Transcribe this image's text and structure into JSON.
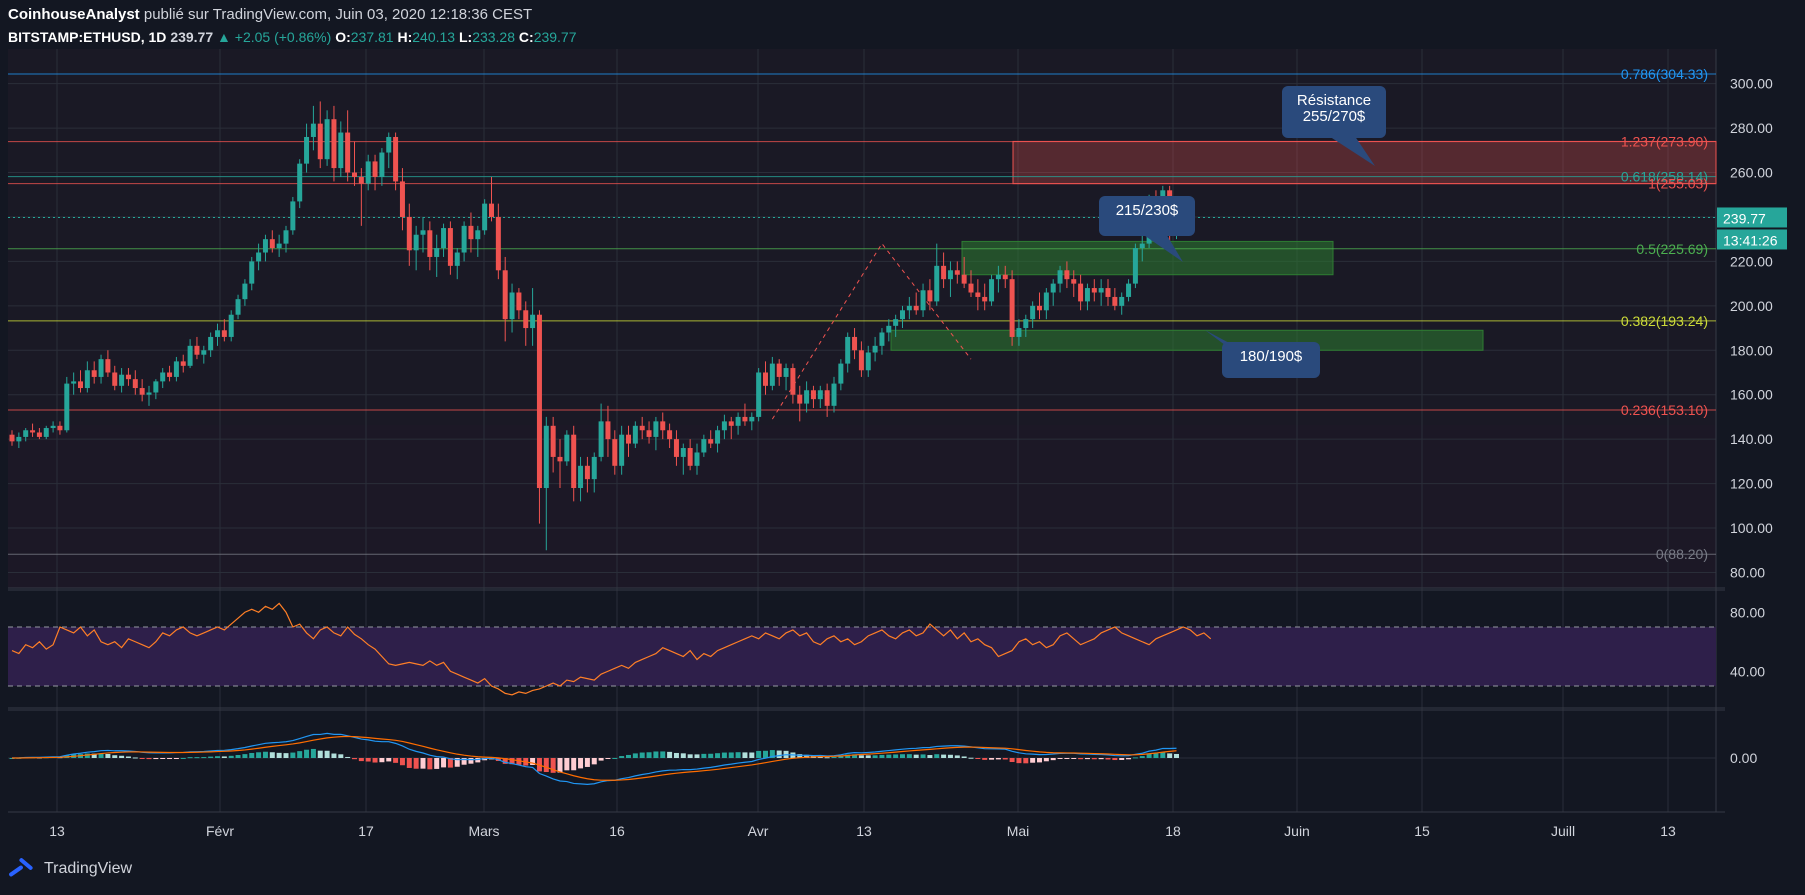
{
  "header": {
    "author": "CoinhouseAnalyst",
    "published": " publié sur TradingView.com, Juin 03, 2020 12:18:36 CEST",
    "symbol": "BITSTAMP:ETHUSD, 1D",
    "last": "239.77",
    "change": "▲ +2.05 (+0.86%)",
    "o_label": "O:",
    "o": "237.81",
    "h_label": "H:",
    "h": "240.13",
    "l_label": "L:",
    "l": "233.28",
    "c_label": "C:",
    "c": "239.77"
  },
  "footer": {
    "brand": "TradingView"
  },
  "colors": {
    "background": "#131722",
    "up": "#26a69a",
    "down": "#ef5350",
    "grid": "#2a2e39",
    "rsi": "#ff7f27",
    "rsi_band": "#2e1f4a",
    "macd": "#2196f3",
    "signal": "#ff6d00"
  },
  "chart_data": [
    {
      "type": "candlestick",
      "symbol": "BITSTAMP:ETHUSD",
      "timeframe": "1D",
      "ylim": [
        73,
        312
      ],
      "y_ticks": [
        "300.00",
        "280.00",
        "260.00",
        "240.00",
        "220.00",
        "200.00",
        "180.00",
        "160.00",
        "140.00",
        "120.00",
        "100.00",
        "80.00"
      ],
      "x_ticks": [
        "13",
        "Févr",
        "17",
        "Mars",
        "16",
        "Avr",
        "13",
        "Mai",
        "18",
        "Juin",
        "15",
        "Juill",
        "13"
      ],
      "last_price": "239.77",
      "countdown": "13:41:26",
      "fib_levels": [
        {
          "label": "0.786(304.33)",
          "value": 304.33,
          "color": "#2196f3"
        },
        {
          "label": "1.237(273.90)",
          "value": 273.9,
          "color": "#ef5350"
        },
        {
          "label": "0.618(258.14)",
          "value": 258.14,
          "color": "#26a69a"
        },
        {
          "label": "1(255.03)",
          "value": 255.03,
          "color": "#ef5350"
        },
        {
          "label": "0.5(225.69)",
          "value": 225.69,
          "color": "#4caf50"
        },
        {
          "label": "0.382(193.24)",
          "value": 193.24,
          "color": "#cddc39"
        },
        {
          "label": "0.236(153.10)",
          "value": 153.1,
          "color": "#ef5350"
        },
        {
          "label": "0(88.20)",
          "value": 88.2,
          "color": "#787b86"
        }
      ],
      "zones": [
        {
          "name": "resistance",
          "low": 255,
          "high": 274,
          "color": "#ef5350"
        },
        {
          "name": "support-215-230",
          "low": 214,
          "high": 229,
          "color": "#2e7d32"
        },
        {
          "name": "support-180-190",
          "low": 180,
          "high": 189,
          "color": "#2e7d32"
        }
      ],
      "annotations": [
        "Résistance\n255/270$",
        "215/230$",
        "180/190$"
      ],
      "candles": [
        [
          142,
          144,
          137,
          139
        ],
        [
          139,
          143,
          136,
          141
        ],
        [
          141,
          145,
          139,
          144
        ],
        [
          144,
          147,
          141,
          143
        ],
        [
          143,
          145,
          140,
          141
        ],
        [
          141,
          146,
          140,
          145
        ],
        [
          145,
          148,
          143,
          146
        ],
        [
          146,
          148,
          142,
          144
        ],
        [
          144,
          168,
          143,
          165
        ],
        [
          165,
          170,
          160,
          166
        ],
        [
          166,
          171,
          161,
          163
        ],
        [
          163,
          175,
          161,
          171
        ],
        [
          171,
          175,
          165,
          168
        ],
        [
          168,
          178,
          165,
          176
        ],
        [
          176,
          180,
          168,
          170
        ],
        [
          170,
          173,
          162,
          164
        ],
        [
          164,
          172,
          161,
          169
        ],
        [
          169,
          172,
          164,
          167
        ],
        [
          167,
          171,
          160,
          163
        ],
        [
          163,
          167,
          157,
          160
        ],
        [
          160,
          164,
          155,
          161
        ],
        [
          161,
          167,
          158,
          166
        ],
        [
          166,
          172,
          163,
          170
        ],
        [
          170,
          173,
          166,
          168
        ],
        [
          168,
          177,
          166,
          175
        ],
        [
          175,
          178,
          170,
          173
        ],
        [
          173,
          185,
          172,
          182
        ],
        [
          182,
          186,
          176,
          178
        ],
        [
          178,
          182,
          174,
          180
        ],
        [
          180,
          188,
          177,
          186
        ],
        [
          186,
          192,
          182,
          189
        ],
        [
          189,
          194,
          184,
          186
        ],
        [
          186,
          198,
          184,
          196
        ],
        [
          196,
          205,
          194,
          203
        ],
        [
          203,
          212,
          200,
          210
        ],
        [
          210,
          222,
          207,
          220
        ],
        [
          220,
          228,
          216,
          224
        ],
        [
          224,
          232,
          220,
          230
        ],
        [
          230,
          234,
          224,
          226
        ],
        [
          226,
          232,
          222,
          228
        ],
        [
          228,
          236,
          224,
          234
        ],
        [
          234,
          249,
          232,
          247
        ],
        [
          247,
          266,
          244,
          264
        ],
        [
          264,
          282,
          260,
          276
        ],
        [
          276,
          290,
          270,
          282
        ],
        [
          282,
          292,
          262,
          266
        ],
        [
          266,
          288,
          263,
          284
        ],
        [
          284,
          290,
          256,
          262
        ],
        [
          262,
          283,
          258,
          278
        ],
        [
          278,
          288,
          256,
          260
        ],
        [
          260,
          274,
          254,
          258
        ],
        [
          258,
          262,
          236,
          255
        ],
        [
          255,
          268,
          252,
          265
        ],
        [
          265,
          268,
          252,
          258
        ],
        [
          258,
          271,
          254,
          269
        ],
        [
          269,
          278,
          262,
          276
        ],
        [
          276,
          278,
          252,
          256
        ],
        [
          256,
          262,
          234,
          240
        ],
        [
          240,
          246,
          218,
          225
        ],
        [
          225,
          236,
          216,
          232
        ],
        [
          232,
          240,
          224,
          234
        ],
        [
          234,
          238,
          216,
          222
        ],
        [
          222,
          232,
          213,
          226
        ],
        [
          226,
          237,
          222,
          235
        ],
        [
          235,
          238,
          214,
          218
        ],
        [
          218,
          226,
          212,
          224
        ],
        [
          224,
          238,
          220,
          236
        ],
        [
          236,
          242,
          224,
          230
        ],
        [
          230,
          236,
          222,
          234
        ],
        [
          234,
          248,
          232,
          246
        ],
        [
          246,
          258,
          238,
          240
        ],
        [
          240,
          246,
          212,
          216
        ],
        [
          216,
          222,
          184,
          194
        ],
        [
          194,
          210,
          188,
          206
        ],
        [
          206,
          208,
          194,
          198
        ],
        [
          198,
          202,
          182,
          190
        ],
        [
          190,
          208,
          182,
          196
        ],
        [
          196,
          198,
          102,
          118
        ],
        [
          118,
          150,
          90,
          146
        ],
        [
          146,
          150,
          125,
          132
        ],
        [
          132,
          140,
          118,
          130
        ],
        [
          130,
          144,
          128,
          142
        ],
        [
          142,
          146,
          112,
          118
        ],
        [
          118,
          132,
          112,
          128
        ],
        [
          128,
          132,
          116,
          122
        ],
        [
          122,
          134,
          116,
          132
        ],
        [
          132,
          156,
          130,
          148
        ],
        [
          148,
          155,
          132,
          140
        ],
        [
          140,
          144,
          124,
          128
        ],
        [
          128,
          146,
          124,
          142
        ],
        [
          142,
          146,
          132,
          138
        ],
        [
          138,
          148,
          136,
          146
        ],
        [
          146,
          150,
          140,
          144
        ],
        [
          144,
          148,
          138,
          141
        ],
        [
          141,
          150,
          135,
          148
        ],
        [
          148,
          152,
          140,
          144
        ],
        [
          144,
          147,
          136,
          140
        ],
        [
          140,
          144,
          128,
          132
        ],
        [
          132,
          138,
          124,
          136
        ],
        [
          136,
          140,
          126,
          128
        ],
        [
          128,
          138,
          124,
          134
        ],
        [
          134,
          142,
          132,
          140
        ],
        [
          140,
          144,
          136,
          138
        ],
        [
          138,
          146,
          134,
          144
        ],
        [
          144,
          151,
          140,
          148
        ],
        [
          148,
          150,
          140,
          146
        ],
        [
          146,
          152,
          142,
          150
        ],
        [
          150,
          156,
          146,
          148
        ],
        [
          148,
          152,
          144,
          150
        ],
        [
          150,
          172,
          148,
          170
        ],
        [
          170,
          175,
          160,
          164
        ],
        [
          164,
          177,
          162,
          174
        ],
        [
          174,
          176,
          164,
          168
        ],
        [
          168,
          174,
          162,
          172
        ],
        [
          172,
          174,
          156,
          160
        ],
        [
          160,
          164,
          148,
          156
        ],
        [
          156,
          166,
          152,
          162
        ],
        [
          162,
          164,
          154,
          158
        ],
        [
          158,
          164,
          154,
          162
        ],
        [
          162,
          165,
          150,
          155
        ],
        [
          155,
          168,
          152,
          165
        ],
        [
          165,
          176,
          162,
          174
        ],
        [
          174,
          188,
          170,
          186
        ],
        [
          186,
          190,
          176,
          180
        ],
        [
          180,
          184,
          168,
          171
        ],
        [
          171,
          182,
          168,
          179
        ],
        [
          179,
          186,
          175,
          182
        ],
        [
          182,
          190,
          178,
          188
        ],
        [
          188,
          194,
          184,
          191
        ],
        [
          191,
          196,
          186,
          194
        ],
        [
          194,
          200,
          190,
          198
        ],
        [
          198,
          204,
          194,
          200
        ],
        [
          200,
          206,
          196,
          198
        ],
        [
          198,
          210,
          195,
          207
        ],
        [
          207,
          212,
          198,
          202
        ],
        [
          202,
          228,
          200,
          218
        ],
        [
          218,
          224,
          208,
          212
        ],
        [
          212,
          220,
          204,
          216
        ],
        [
          216,
          220,
          210,
          214
        ],
        [
          214,
          222,
          208,
          210
        ],
        [
          210,
          216,
          204,
          206
        ],
        [
          206,
          212,
          198,
          204
        ],
        [
          204,
          210,
          198,
          202
        ],
        [
          202,
          214,
          200,
          212
        ],
        [
          212,
          218,
          206,
          214
        ],
        [
          214,
          218,
          208,
          212
        ],
        [
          212,
          216,
          182,
          186
        ],
        [
          186,
          194,
          182,
          190
        ],
        [
          190,
          196,
          186,
          194
        ],
        [
          194,
          202,
          190,
          200
        ],
        [
          200,
          206,
          194,
          198
        ],
        [
          198,
          208,
          194,
          206
        ],
        [
          206,
          212,
          200,
          210
        ],
        [
          210,
          218,
          206,
          216
        ],
        [
          216,
          220,
          208,
          212
        ],
        [
          212,
          216,
          204,
          210
        ],
        [
          210,
          214,
          198,
          202
        ],
        [
          202,
          210,
          198,
          208
        ],
        [
          208,
          212,
          202,
          206
        ],
        [
          206,
          212,
          200,
          208
        ],
        [
          208,
          212,
          200,
          204
        ],
        [
          204,
          208,
          198,
          200
        ],
        [
          200,
          206,
          196,
          204
        ],
        [
          204,
          212,
          202,
          210
        ],
        [
          210,
          228,
          208,
          226
        ],
        [
          226,
          232,
          220,
          228
        ],
        [
          228,
          250,
          226,
          246
        ],
        [
          246,
          252,
          234,
          238
        ],
        [
          238,
          254,
          234,
          252
        ],
        [
          252,
          254,
          226,
          234
        ],
        [
          234,
          244,
          230,
          240
        ]
      ]
    },
    {
      "type": "line",
      "name": "RSI",
      "ylim": [
        20,
        95
      ],
      "y_ticks": [
        "80.00",
        "40.00"
      ],
      "bands": [
        70,
        30
      ],
      "values": [
        54,
        52,
        58,
        56,
        60,
        55,
        58,
        70,
        68,
        66,
        70,
        64,
        68,
        60,
        58,
        60,
        56,
        62,
        60,
        58,
        56,
        60,
        66,
        64,
        68,
        70,
        66,
        64,
        66,
        68,
        70,
        68,
        72,
        76,
        80,
        82,
        80,
        84,
        82,
        86,
        80,
        70,
        72,
        66,
        62,
        68,
        70,
        66,
        64,
        70,
        65,
        62,
        58,
        55,
        50,
        45,
        44,
        45,
        46,
        45,
        44,
        47,
        44,
        46,
        40,
        38,
        36,
        34,
        32,
        35,
        30,
        28,
        25,
        24,
        26,
        25,
        27,
        28,
        30,
        32,
        30,
        34,
        33,
        36,
        35,
        34,
        38,
        40,
        42,
        44,
        42,
        46,
        48,
        50,
        52,
        56,
        54,
        52,
        50,
        54,
        48,
        52,
        50,
        54,
        56,
        58,
        60,
        62,
        64,
        62,
        66,
        64,
        62,
        66,
        68,
        64,
        66,
        60,
        58,
        62,
        64,
        60,
        62,
        58,
        60,
        64,
        66,
        68,
        64,
        62,
        66,
        68,
        64,
        66,
        72,
        68,
        64,
        68,
        62,
        66,
        60,
        62,
        58,
        56,
        50,
        52,
        54,
        60,
        62,
        58,
        60,
        56,
        58,
        64,
        66,
        62,
        58,
        60,
        62,
        66,
        68,
        70,
        66,
        64,
        62,
        60,
        58,
        62,
        64,
        66,
        68,
        70,
        68,
        64,
        66,
        62
      ]
    },
    {
      "type": "bar+line",
      "name": "MACD",
      "y_ticks": [
        "0.00"
      ]
    }
  ]
}
